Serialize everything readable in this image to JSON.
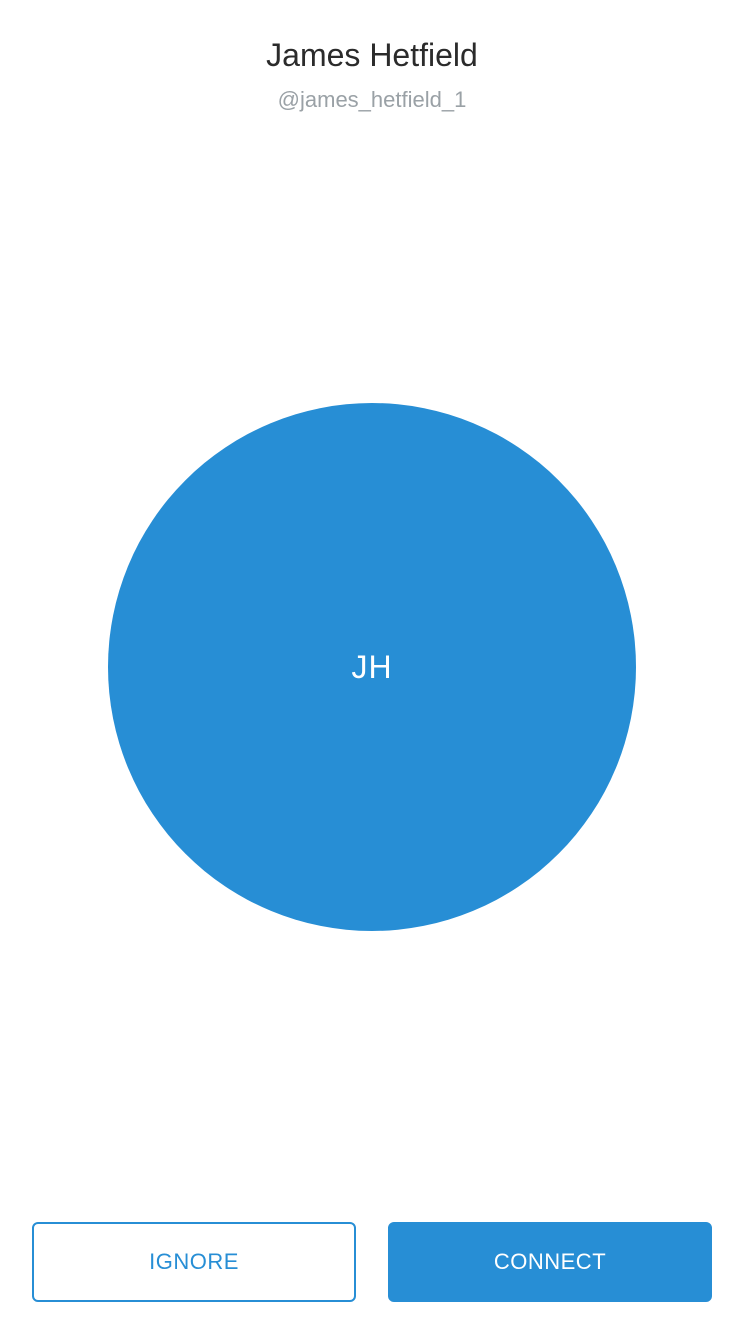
{
  "profile": {
    "name": "James Hetfield",
    "handle": "@james_hetfield_1",
    "initials": "JH"
  },
  "actions": {
    "ignore_label": "IGNORE",
    "connect_label": "CONNECT"
  },
  "colors": {
    "accent": "#278ed5",
    "name_text": "#2b2b2b",
    "handle_text": "#9aa1a6"
  }
}
